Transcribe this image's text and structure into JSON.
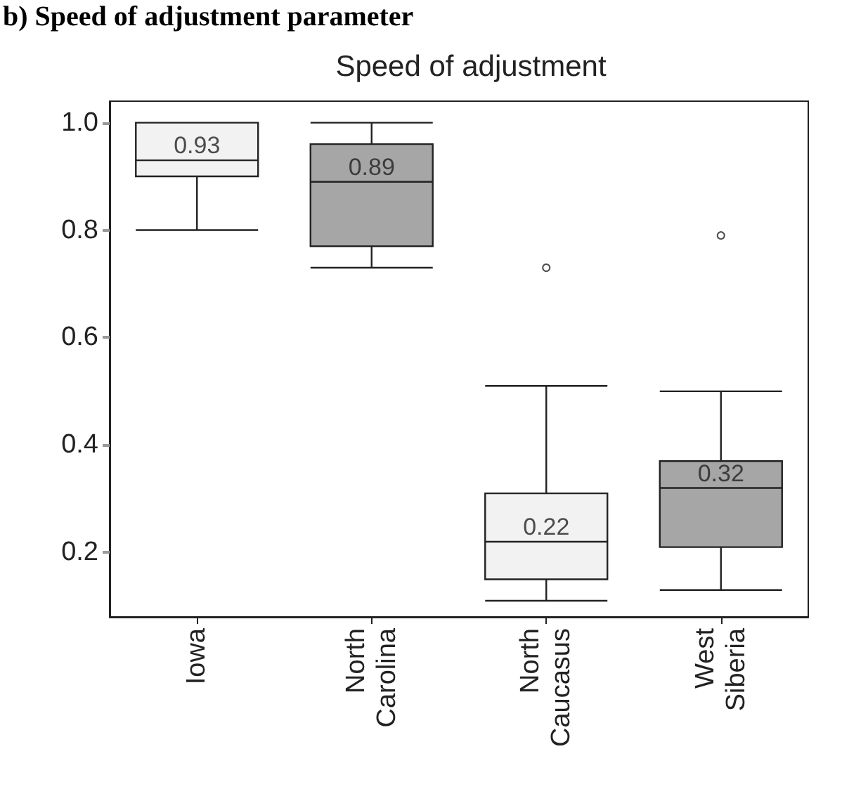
{
  "chart_data": {
    "type": "box",
    "title": "Speed of adjustment",
    "annotations": [
      "b) Speed of adjustment parameter"
    ],
    "categories": [
      "Iowa",
      "North Carolina",
      "North Caucasus",
      "West Siberia"
    ],
    "colors": [
      "#f2f2f2",
      "#a6a6a6",
      "#f2f2f2",
      "#a6a6a6"
    ],
    "boxes": [
      {
        "low": 0.8,
        "q1": 0.9,
        "median": 0.93,
        "q3": 1.0,
        "high": 1.0
      },
      {
        "low": 0.73,
        "q1": 0.77,
        "median": 0.89,
        "q3": 0.96,
        "high": 1.0
      },
      {
        "low": 0.11,
        "q1": 0.15,
        "median": 0.22,
        "q3": 0.31,
        "high": 0.51,
        "outliers": [
          0.73
        ]
      },
      {
        "low": 0.13,
        "q1": 0.21,
        "median": 0.32,
        "q3": 0.37,
        "high": 0.5,
        "outliers": [
          0.79
        ]
      }
    ],
    "value_labels": [
      "0.93",
      "0.89",
      "0.22",
      "0.32"
    ],
    "ylim": [
      0.08,
      1.04
    ],
    "yticks": [
      0.2,
      0.4,
      0.6,
      0.8,
      {
        "value": 1,
        "label": "1.0"
      }
    ],
    "grid": false
  }
}
